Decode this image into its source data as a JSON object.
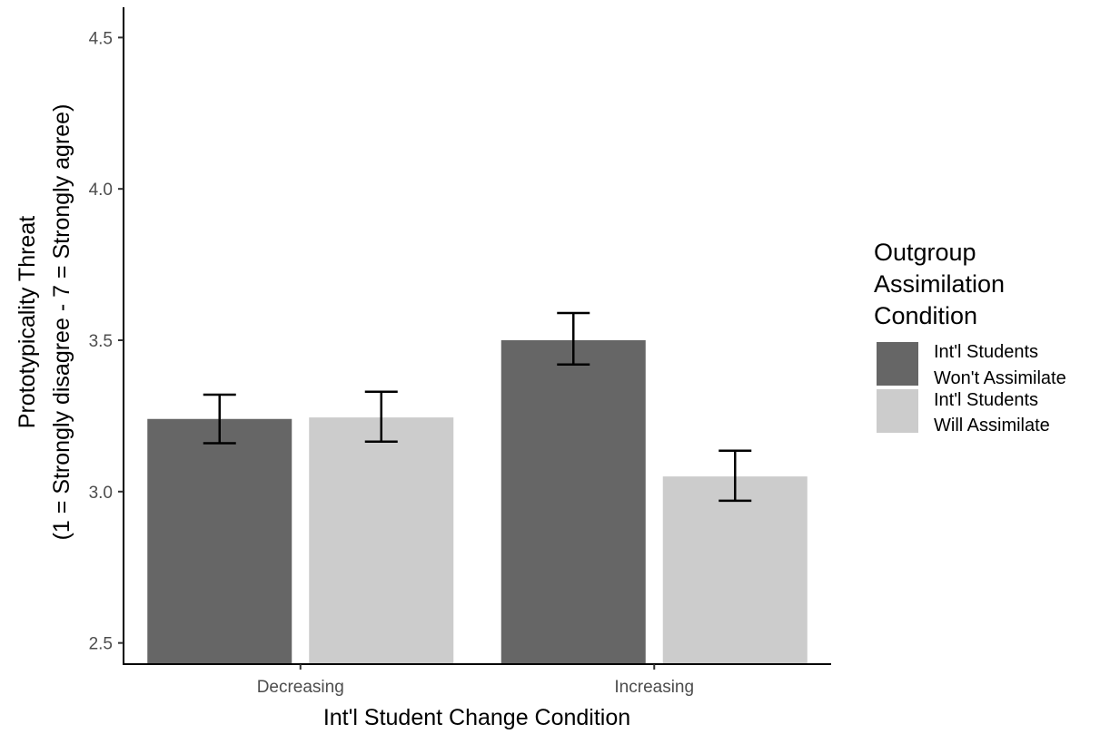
{
  "colors": {
    "wont_assimilate": "#666666",
    "will_assimilate": "#cccccc",
    "axis": "#000000",
    "error_bar": "#000000"
  },
  "chart_data": {
    "type": "bar",
    "title": "",
    "xlabel": "Int'l Student Change Condition",
    "ylabel": [
      "Prototypicality Threat",
      "(1 = Strongly disagree - 7 = Strongly agree)"
    ],
    "categories": [
      "Decreasing",
      "Increasing"
    ],
    "ylim": [
      2.43,
      4.6
    ],
    "yticks": [
      2.5,
      3.0,
      3.5,
      4.0,
      4.5
    ],
    "ytick_labels": [
      "2.5",
      "3.0",
      "3.5",
      "4.0",
      "4.5"
    ],
    "grid": false,
    "legend": {
      "title": [
        "Outgroup",
        "Assimilation",
        "Condition"
      ],
      "position": "right"
    },
    "series": [
      {
        "name": [
          "Int'l Students",
          "Won't Assimilate"
        ],
        "color": "#666666",
        "values": [
          3.24,
          3.5
        ],
        "error_low": [
          3.16,
          3.42
        ],
        "error_high": [
          3.32,
          3.59
        ]
      },
      {
        "name": [
          "Int'l Students",
          "Will Assimilate"
        ],
        "color": "#cccccc",
        "values": [
          3.245,
          3.05
        ],
        "error_low": [
          3.165,
          2.97
        ],
        "error_high": [
          3.33,
          3.135
        ]
      }
    ]
  }
}
